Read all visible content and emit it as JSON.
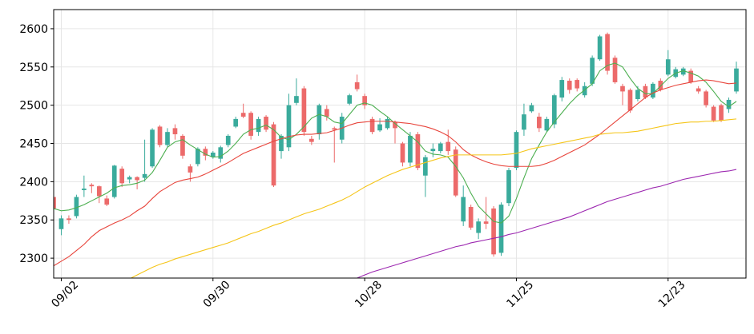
{
  "chart_data": {
    "type": "candlestick",
    "categories": [
      null,
      "09/02",
      null,
      null,
      null,
      null,
      null,
      null,
      null,
      null,
      null,
      null,
      null,
      null,
      null,
      null,
      null,
      null,
      null,
      null,
      null,
      "09/30",
      null,
      null,
      null,
      null,
      null,
      null,
      null,
      null,
      null,
      null,
      null,
      null,
      null,
      null,
      null,
      null,
      null,
      null,
      null,
      "10/28",
      null,
      null,
      null,
      null,
      null,
      null,
      null,
      null,
      null,
      null,
      null,
      null,
      null,
      null,
      null,
      null,
      null,
      null,
      null,
      "11/25",
      null,
      null,
      null,
      null,
      null,
      null,
      null,
      null,
      null,
      null,
      null,
      null,
      null,
      null,
      null,
      null,
      null,
      null,
      null,
      "12/23",
      null,
      null,
      null,
      null,
      null,
      null,
      null,
      null,
      null
    ],
    "open": [
      2380,
      2338,
      2352,
      2355,
      2389,
      2396,
      2394,
      2378,
      2380,
      2417,
      2403,
      2406,
      2405,
      2420,
      2472,
      2448,
      2470,
      2460,
      2420,
      2423,
      2443,
      2432,
      2430,
      2448,
      2472,
      2490,
      2490,
      2465,
      2485,
      2475,
      2440,
      2445,
      2503,
      2522,
      2456,
      2462,
      2495,
      2470,
      2455,
      2502,
      2530,
      2512,
      2482,
      2467,
      2470,
      2478,
      2450,
      2425,
      2462,
      2408,
      2440,
      2440,
      2452,
      2442,
      2348,
      2367,
      2333,
      2348,
      2365,
      2307,
      2372,
      2418,
      2468,
      2492,
      2485,
      2467,
      2475,
      2510,
      2532,
      2533,
      2513,
      2528,
      2560,
      2593,
      2562,
      2525,
      2520,
      2508,
      2525,
      2510,
      2532,
      2540,
      2537,
      2540,
      2545,
      2522,
      2518,
      2498,
      2500,
      2495,
      2518
    ],
    "high": [
      2385,
      2356,
      2356,
      2383,
      2408,
      2398,
      2395,
      2382,
      2422,
      2420,
      2408,
      2407,
      2455,
      2470,
      2474,
      2470,
      2475,
      2462,
      2423,
      2445,
      2446,
      2440,
      2447,
      2462,
      2485,
      2502,
      2492,
      2485,
      2487,
      2478,
      2462,
      2515,
      2535,
      2525,
      2460,
      2502,
      2500,
      2472,
      2490,
      2515,
      2540,
      2515,
      2485,
      2483,
      2485,
      2480,
      2452,
      2465,
      2465,
      2435,
      2450,
      2452,
      2468,
      2446,
      2395,
      2370,
      2352,
      2380,
      2368,
      2373,
      2418,
      2467,
      2502,
      2503,
      2490,
      2485,
      2515,
      2537,
      2535,
      2535,
      2530,
      2565,
      2592,
      2595,
      2565,
      2528,
      2522,
      2525,
      2528,
      2530,
      2535,
      2572,
      2550,
      2550,
      2548,
      2525,
      2520,
      2500,
      2502,
      2510,
      2557
    ],
    "low": [
      2360,
      2330,
      2345,
      2352,
      2380,
      2385,
      2372,
      2368,
      2378,
      2393,
      2398,
      2390,
      2400,
      2418,
      2445,
      2445,
      2455,
      2430,
      2400,
      2420,
      2428,
      2430,
      2425,
      2445,
      2470,
      2483,
      2455,
      2460,
      2465,
      2393,
      2430,
      2440,
      2500,
      2460,
      2448,
      2455,
      2480,
      2425,
      2450,
      2500,
      2518,
      2495,
      2462,
      2465,
      2468,
      2450,
      2420,
      2420,
      2415,
      2380,
      2432,
      2437,
      2435,
      2380,
      2342,
      2337,
      2325,
      2338,
      2302,
      2303,
      2368,
      2415,
      2460,
      2490,
      2465,
      2465,
      2470,
      2505,
      2515,
      2518,
      2510,
      2525,
      2558,
      2540,
      2528,
      2500,
      2490,
      2505,
      2508,
      2508,
      2518,
      2538,
      2535,
      2538,
      2528,
      2515,
      2497,
      2478,
      2478,
      2490,
      2515
    ],
    "close": [
      2365,
      2352,
      2350,
      2380,
      2391,
      2394,
      2381,
      2370,
      2421,
      2398,
      2406,
      2402,
      2410,
      2468,
      2448,
      2465,
      2462,
      2434,
      2412,
      2443,
      2434,
      2438,
      2445,
      2460,
      2482,
      2485,
      2460,
      2482,
      2468,
      2395,
      2460,
      2500,
      2512,
      2465,
      2452,
      2500,
      2485,
      2468,
      2485,
      2513,
      2521,
      2500,
      2465,
      2475,
      2482,
      2470,
      2425,
      2460,
      2418,
      2432,
      2443,
      2450,
      2440,
      2382,
      2380,
      2340,
      2348,
      2345,
      2305,
      2370,
      2415,
      2465,
      2488,
      2500,
      2470,
      2482,
      2513,
      2533,
      2520,
      2522,
      2525,
      2562,
      2590,
      2545,
      2530,
      2518,
      2493,
      2520,
      2510,
      2528,
      2520,
      2560,
      2547,
      2548,
      2530,
      2518,
      2500,
      2480,
      2480,
      2507,
      2548
    ],
    "up_color": "#3aab9c",
    "down_color": "#ec6a6a",
    "lines": [
      {
        "color": "#4caf50",
        "values": [
          2365,
          2362,
          2363,
          2366,
          2370,
          2375,
          2380,
          2385,
          2392,
          2395,
          2396,
          2398,
          2402,
          2412,
          2428,
          2445,
          2452,
          2455,
          2448,
          2442,
          2436,
          2432,
          2433,
          2440,
          2450,
          2462,
          2468,
          2470,
          2474,
          2468,
          2458,
          2455,
          2462,
          2472,
          2483,
          2488,
          2485,
          2478,
          2476,
          2488,
          2500,
          2503,
          2500,
          2492,
          2485,
          2476,
          2468,
          2460,
          2452,
          2440,
          2436,
          2435,
          2432,
          2420,
          2405,
          2385,
          2368,
          2358,
          2348,
          2346,
          2355,
          2378,
          2405,
          2430,
          2448,
          2465,
          2478,
          2490,
          2502,
          2512,
          2520,
          2528,
          2545,
          2552,
          2555,
          2550,
          2535,
          2522,
          2515,
          2515,
          2525,
          2535,
          2542,
          2545,
          2542,
          2538,
          2530,
          2518,
          2505,
          2498,
          2505
        ]
      },
      {
        "color": "#e8453c",
        "values": [
          2290,
          2296,
          2302,
          2310,
          2318,
          2328,
          2336,
          2341,
          2346,
          2350,
          2355,
          2362,
          2368,
          2378,
          2387,
          2393,
          2399,
          2402,
          2404,
          2406,
          2410,
          2415,
          2420,
          2425,
          2431,
          2437,
          2441,
          2445,
          2449,
          2453,
          2456,
          2459,
          2461,
          2462,
          2462,
          2463,
          2464,
          2467,
          2470,
          2474,
          2477,
          2478,
          2479,
          2479,
          2479,
          2478,
          2477,
          2476,
          2474,
          2472,
          2469,
          2465,
          2460,
          2452,
          2442,
          2435,
          2430,
          2426,
          2423,
          2421,
          2420,
          2420,
          2420,
          2420,
          2421,
          2424,
          2428,
          2433,
          2438,
          2443,
          2448,
          2455,
          2462,
          2470,
          2478,
          2486,
          2494,
          2502,
          2510,
          2516,
          2520,
          2523,
          2526,
          2528,
          2530,
          2532,
          2533,
          2532,
          2530,
          2528,
          2529
        ]
      },
      {
        "color": "#f5c518",
        "values": [
          null,
          null,
          null,
          null,
          null,
          null,
          null,
          null,
          null,
          null,
          2273,
          2278,
          2283,
          2288,
          2292,
          2295,
          2299,
          2302,
          2305,
          2308,
          2311,
          2314,
          2317,
          2320,
          2324,
          2328,
          2332,
          2335,
          2339,
          2343,
          2346,
          2350,
          2354,
          2358,
          2361,
          2364,
          2368,
          2372,
          2376,
          2381,
          2387,
          2393,
          2398,
          2403,
          2408,
          2412,
          2416,
          2419,
          2422,
          2425,
          2428,
          2431,
          2433,
          2435,
          2435,
          2435,
          2435,
          2435,
          2435,
          2435,
          2436,
          2437,
          2440,
          2443,
          2445,
          2447,
          2449,
          2451,
          2453,
          2455,
          2457,
          2459,
          2462,
          2463,
          2464,
          2464,
          2465,
          2466,
          2468,
          2470,
          2472,
          2474,
          2476,
          2477,
          2478,
          2478,
          2479,
          2479,
          2480,
          2481,
          2482
        ]
      },
      {
        "color": "#9c27b0",
        "values": [
          null,
          null,
          null,
          null,
          null,
          null,
          null,
          null,
          null,
          null,
          null,
          null,
          null,
          null,
          null,
          null,
          null,
          null,
          null,
          null,
          null,
          null,
          null,
          null,
          null,
          null,
          null,
          null,
          null,
          null,
          null,
          null,
          null,
          null,
          null,
          null,
          null,
          null,
          null,
          null,
          2274,
          2278,
          2282,
          2285,
          2288,
          2291,
          2294,
          2297,
          2300,
          2303,
          2306,
          2309,
          2312,
          2315,
          2317,
          2320,
          2322,
          2324,
          2326,
          2328,
          2331,
          2333,
          2336,
          2339,
          2342,
          2345,
          2348,
          2351,
          2354,
          2358,
          2362,
          2366,
          2370,
          2374,
          2377,
          2380,
          2383,
          2386,
          2389,
          2392,
          2394,
          2397,
          2400,
          2403,
          2405,
          2407,
          2409,
          2411,
          2413,
          2414,
          2416
        ]
      }
    ],
    "ylim": [
      2274,
      2625
    ],
    "yticks": [
      2300,
      2350,
      2400,
      2450,
      2500,
      2550,
      2600
    ],
    "grid": true
  }
}
